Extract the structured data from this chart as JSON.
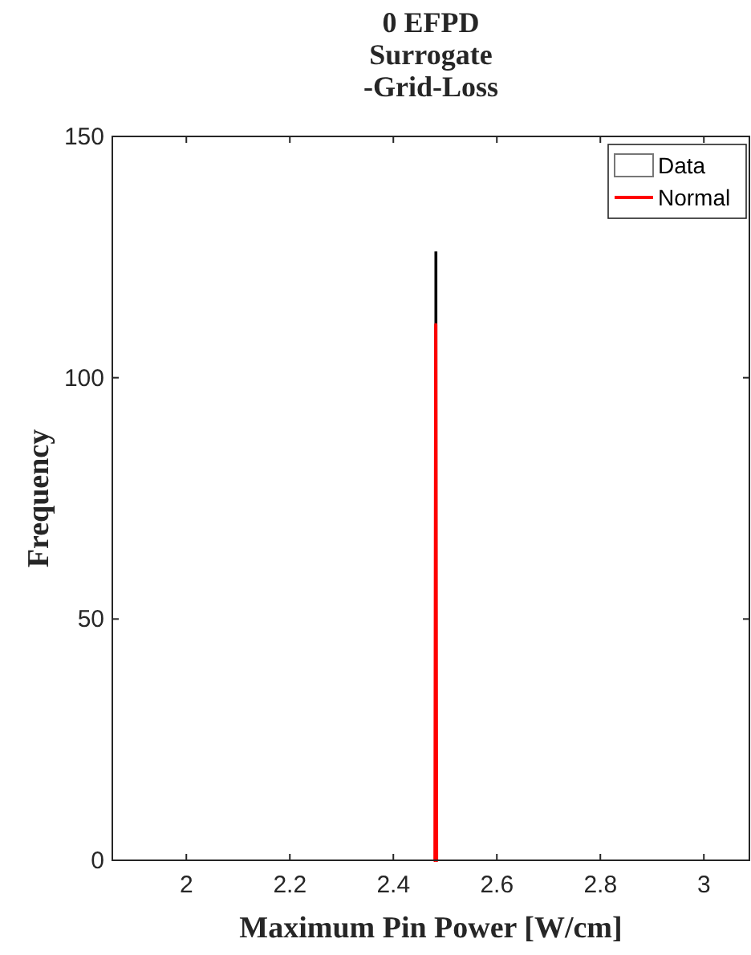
{
  "chart_data": {
    "type": "histogram",
    "title": "0 EFPD\nSurrogate\n-Grid-Loss",
    "xlabel": "Maximum Pin Power [W/cm]",
    "ylabel": "Frequency",
    "xlim": [
      1.857,
      3.088
    ],
    "xticks": [
      {
        "value": 2,
        "label": "2"
      },
      {
        "value": 2.2,
        "label": "2.2"
      },
      {
        "value": 2.4,
        "label": "2.4"
      },
      {
        "value": 2.6,
        "label": "2.6"
      },
      {
        "value": 2.8,
        "label": "2.8"
      },
      {
        "value": 3,
        "label": "3"
      }
    ],
    "ylim": [
      0,
      150
    ],
    "yticks": [
      0,
      50,
      100,
      150
    ],
    "legend": "top right",
    "grid": false,
    "series": [
      {
        "name": "Data",
        "color": "#ffffff",
        "bins": [
          2.481,
          2.483
        ],
        "values": [
          126
        ]
      },
      {
        "name": "Normal",
        "type": "line",
        "color": "#ff0000",
        "x": [
          2.478,
          2.4805,
          2.482,
          2.4835,
          2.486
        ],
        "values": [
          0,
          0,
          111,
          0,
          0
        ]
      }
    ]
  }
}
